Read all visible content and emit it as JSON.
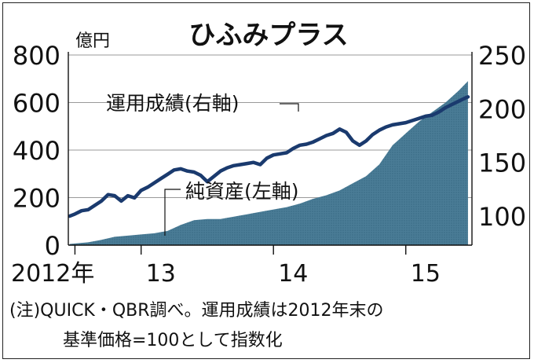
{
  "chart_data": {
    "type": "area+line",
    "title": "ひふみプラス",
    "left_axis": {
      "unit": "億円",
      "ticks": [
        0,
        200,
        400,
        600,
        800
      ],
      "range": [
        0,
        800
      ]
    },
    "right_axis": {
      "ticks": [
        100,
        150,
        200,
        250
      ],
      "range": [
        73,
        250
      ]
    },
    "x_ticks": [
      {
        "label": "2012年",
        "x": 2013.0
      },
      {
        "label": "13",
        "x": 2013.5
      },
      {
        "label": "14",
        "x": 2014.5
      },
      {
        "label": "15",
        "x": 2015.5
      }
    ],
    "x_range": [
      2012.95,
      2016.0
    ],
    "series": [
      {
        "name": "純資産(左軸)",
        "kind": "area",
        "axis": "left",
        "color": "#4a7c96",
        "x": [
          2012.96,
          2013.0,
          2013.1,
          2013.2,
          2013.3,
          2013.4,
          2013.5,
          2013.6,
          2013.7,
          2013.8,
          2013.9,
          2014.0,
          2014.1,
          2014.2,
          2014.3,
          2014.4,
          2014.5,
          2014.6,
          2014.7,
          2014.8,
          2014.9,
          2015.0,
          2015.1,
          2015.2,
          2015.3,
          2015.4,
          2015.5,
          2015.6,
          2015.7,
          2015.8,
          2015.9,
          2015.97
        ],
        "values": [
          5,
          7,
          12,
          22,
          35,
          40,
          45,
          50,
          60,
          85,
          105,
          110,
          110,
          120,
          130,
          140,
          150,
          160,
          175,
          195,
          210,
          230,
          260,
          290,
          340,
          420,
          470,
          520,
          560,
          600,
          650,
          690
        ]
      },
      {
        "name": "運用成績(右軸)",
        "kind": "line",
        "axis": "right",
        "color": "#1a3a6e",
        "x": [
          2012.96,
          2013.0,
          2013.05,
          2013.1,
          2013.15,
          2013.2,
          2013.25,
          2013.3,
          2013.35,
          2013.4,
          2013.45,
          2013.5,
          2013.55,
          2013.6,
          2013.65,
          2013.7,
          2013.75,
          2013.8,
          2013.85,
          2013.9,
          2013.95,
          2014.0,
          2014.05,
          2014.1,
          2014.15,
          2014.2,
          2014.25,
          2014.3,
          2014.35,
          2014.4,
          2014.45,
          2014.5,
          2014.55,
          2014.6,
          2014.65,
          2014.7,
          2014.75,
          2014.8,
          2014.85,
          2014.9,
          2014.95,
          2015.0,
          2015.05,
          2015.1,
          2015.15,
          2015.2,
          2015.25,
          2015.3,
          2015.35,
          2015.4,
          2015.45,
          2015.5,
          2015.55,
          2015.6,
          2015.65,
          2015.7,
          2015.75,
          2015.8,
          2015.85,
          2015.9,
          2015.95,
          2015.97
        ],
        "values": [
          100,
          102,
          105,
          106,
          110,
          114,
          120,
          119,
          114,
          119,
          117,
          124,
          127,
          131,
          135,
          139,
          143,
          144,
          142,
          141,
          138,
          132,
          137,
          142,
          145,
          147,
          148,
          149,
          150,
          148,
          154,
          157,
          158,
          159,
          163,
          166,
          167,
          169,
          172,
          175,
          177,
          181,
          178,
          170,
          166,
          170,
          176,
          180,
          183,
          185,
          186,
          187,
          189,
          191,
          193,
          194,
          197,
          201,
          204,
          207,
          210,
          211
        ]
      }
    ],
    "annotations": [
      {
        "text": "運用成績(右軸)"
      },
      {
        "text": "純資産(左軸)"
      }
    ],
    "note": "(注)QUICK・QBR調べ。運用成績は2012年末の基準価格=100として指数化"
  }
}
